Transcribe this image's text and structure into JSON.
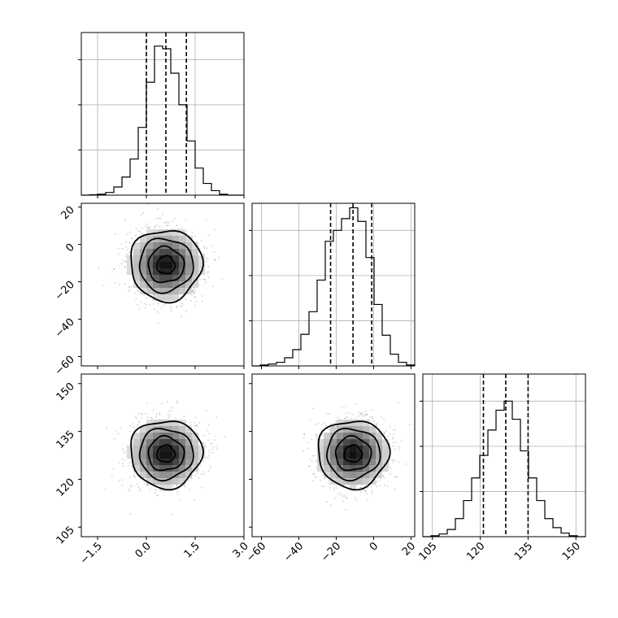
{
  "chart_data": {
    "type": "corner",
    "parameters": [
      {
        "name": "",
        "range": [
          -2,
          3
        ],
        "ticks": [
          -1.5,
          0.0,
          1.5,
          3.0
        ],
        "tick_labels": [
          "−1.5",
          "0.0",
          "1.5",
          "3.0"
        ],
        "quantiles": [
          0.0,
          0.6,
          1.23
        ],
        "hist_bin_edges": [
          -2.0,
          -1.75,
          -1.5,
          -1.25,
          -1.0,
          -0.75,
          -0.5,
          -0.25,
          0.0,
          0.25,
          0.5,
          0.75,
          1.0,
          1.25,
          1.5,
          1.75,
          2.0,
          2.25,
          2.5,
          2.75,
          3.0
        ],
        "hist_counts": [
          0,
          0.5,
          1,
          3,
          9,
          20,
          40,
          75,
          125,
          165,
          162,
          135,
          100,
          60,
          30,
          13,
          5,
          1,
          0,
          0
        ]
      },
      {
        "name": "",
        "range": [
          -65,
          22
        ],
        "ticks": [
          -60,
          -40,
          -20,
          0,
          20
        ],
        "tick_labels": [
          "−60",
          "−40",
          "−20",
          "0",
          "20"
        ],
        "quantiles": [
          -23,
          -11,
          -1
        ],
        "hist_bin_edges": [
          -65,
          -60.65,
          -56.3,
          -51.95,
          -47.6,
          -43.25,
          -38.9,
          -34.55,
          -30.2,
          -25.85,
          -21.5,
          -17.15,
          -12.8,
          -8.45,
          -4.1,
          0.25,
          4.6,
          8.95,
          13.3,
          17.65,
          22
        ],
        "hist_counts": [
          0,
          1,
          2,
          4,
          9,
          18,
          35,
          60,
          95,
          138,
          150,
          163,
          175,
          160,
          120,
          68,
          34,
          13,
          4,
          1
        ]
      },
      {
        "name": "",
        "range": [
          102,
          153
        ],
        "ticks": [
          105,
          120,
          135,
          150
        ],
        "tick_labels": [
          "105",
          "120",
          "135",
          "150"
        ],
        "quantiles": [
          121,
          128,
          135
        ],
        "hist_bin_edges": [
          102,
          104.55,
          107.1,
          109.65,
          112.2,
          114.75,
          117.3,
          119.85,
          122.4,
          124.95,
          127.5,
          130.05,
          132.6,
          135.15,
          137.7,
          140.25,
          142.8,
          145.35,
          147.9,
          150.45,
          153
        ],
        "hist_counts": [
          0,
          1,
          3,
          8,
          20,
          40,
          65,
          90,
          118,
          140,
          150,
          130,
          95,
          65,
          40,
          20,
          10,
          4,
          1,
          0
        ]
      }
    ],
    "hist_ylim": [
      0,
      180
    ],
    "hist_ticks": [
      50,
      100,
      150
    ],
    "joint_panels": [
      {
        "x_param": 0,
        "y_param": 1,
        "mean": [
          0.6,
          -11
        ],
        "std": [
          0.55,
          9.5
        ],
        "levels_sigma": [
          0.5,
          1.0,
          1.5,
          2.0
        ]
      },
      {
        "x_param": 0,
        "y_param": 2,
        "mean": [
          0.6,
          128
        ],
        "std": [
          0.55,
          5.3
        ],
        "levels_sigma": [
          0.5,
          1.0,
          1.5,
          2.0
        ]
      },
      {
        "x_param": 1,
        "y_param": 2,
        "mean": [
          -11,
          128
        ],
        "std": [
          9.5,
          5.3
        ],
        "levels_sigma": [
          0.5,
          1.0,
          1.5,
          2.0
        ]
      }
    ],
    "grid": true,
    "legend": "none"
  }
}
